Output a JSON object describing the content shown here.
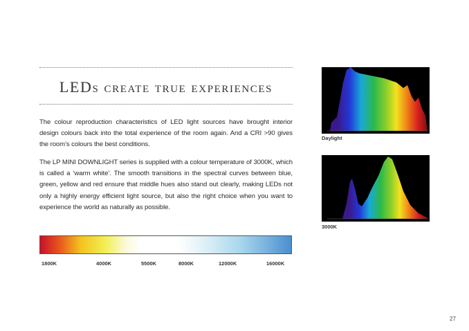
{
  "header": {
    "title": "LEDs create true experiences"
  },
  "paragraphs": [
    "The colour reproduction characteristics of LED light sources have brought interior design colours back into the total experience of the room again. And a CRI >90 gives the room’s colours the best conditions.",
    "The LP MINI DOWNLIGHT series is supplied with a colour temperature of 3000K, which is called a ‘warm white’. The smooth transitions in the spectral curves between blue, green, yellow and red ensure that middle hues also stand out clearly, making LEDs not only a highly energy efficient light source, but also the right choice when you want to experience the world as naturally as possible."
  ],
  "color_temperature_scale": {
    "labels": [
      "1800K",
      "4000K",
      "5500K",
      "8000K",
      "12000K",
      "16000K"
    ]
  },
  "figures": [
    {
      "caption": "Daylight"
    },
    {
      "caption": "3000K"
    }
  ],
  "page_number": "27"
}
